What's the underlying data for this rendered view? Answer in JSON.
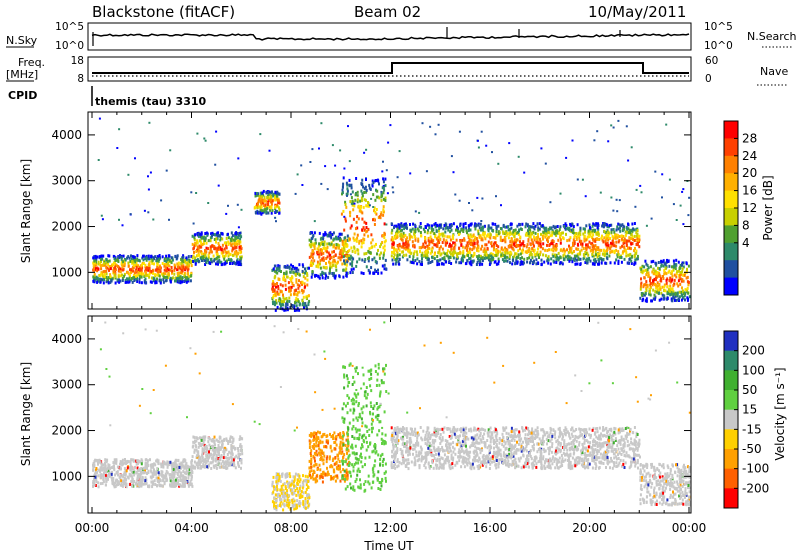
{
  "header": {
    "station": "Blackstone (fitACF)",
    "beam": "Beam 02",
    "date": "10/May/2011"
  },
  "panels": {
    "noise": {
      "left_label": "N.Sky",
      "right_label": "N.Search",
      "left_ticks": [
        "10^5",
        "10^0"
      ],
      "right_ticks": [
        "10^5",
        "10^0"
      ]
    },
    "freq": {
      "left_label_1": "Freq.",
      "left_label_2": "[MHz]",
      "right_label": "Nave",
      "left_ticks": [
        "18",
        "8"
      ],
      "right_ticks": [
        "60",
        "0"
      ]
    },
    "cpid": {
      "label": "CPID",
      "value": "themis (tau) 3310"
    }
  },
  "power_colorbar": {
    "title": "Power [dB]",
    "ticks": [
      "28",
      "24",
      "20",
      "16",
      "12",
      "8",
      "4"
    ],
    "colors": [
      "#ff0000",
      "#ff4000",
      "#ff8000",
      "#ffb000",
      "#ffe000",
      "#c8d000",
      "#50a030",
      "#2e8a6a",
      "#2050a0",
      "#0000ff"
    ]
  },
  "velocity_colorbar": {
    "title": "Velocity [m s⁻¹]",
    "ticks": [
      "200",
      "100",
      "50",
      "15",
      "-15",
      "-50",
      "-100",
      "-200"
    ],
    "colors": [
      "#2030c0",
      "#2e8a6a",
      "#40b030",
      "#60d040",
      "#c8c8c8",
      "#ffd000",
      "#ffa000",
      "#ff6000",
      "#ff0000"
    ]
  },
  "chart_data": [
    {
      "type": "heatmap",
      "title": "Power",
      "ylabel": "Slant Range [km]",
      "xlabel": "",
      "ylim": [
        200,
        4500
      ],
      "yticks": [
        "4000",
        "3000",
        "2000",
        "1000"
      ],
      "xticks": [],
      "bands": [
        {
          "start_h": 0.0,
          "end_h": 4.0,
          "range_lo": 800,
          "range_hi": 1400
        },
        {
          "start_h": 4.0,
          "end_h": 6.0,
          "range_lo": 1200,
          "range_hi": 1900
        },
        {
          "start_h": 6.5,
          "end_h": 7.5,
          "range_lo": 2300,
          "range_hi": 2800
        },
        {
          "start_h": 7.2,
          "end_h": 8.7,
          "range_lo": 200,
          "range_hi": 1200
        },
        {
          "start_h": 8.7,
          "end_h": 10.3,
          "range_lo": 900,
          "range_hi": 1900
        },
        {
          "start_h": 10.0,
          "end_h": 11.8,
          "range_lo": 1000,
          "range_hi": 3100
        },
        {
          "start_h": 12.0,
          "end_h": 22.0,
          "range_lo": 1200,
          "range_hi": 2100
        },
        {
          "start_h": 22.0,
          "end_h": 24.0,
          "range_lo": 400,
          "range_hi": 1300
        }
      ]
    },
    {
      "type": "heatmap",
      "title": "Velocity",
      "ylabel": "Slant Range [km]",
      "xlabel": "Time UT",
      "ylim": [
        200,
        4500
      ],
      "yticks": [
        "4000",
        "3000",
        "2000",
        "1000"
      ],
      "xticks": [
        "00:00",
        "04:00",
        "08:00",
        "12:00",
        "16:00",
        "20:00",
        "00:00"
      ],
      "bands": [
        {
          "start_h": 0.0,
          "end_h": 4.0,
          "range_lo": 800,
          "range_hi": 1400
        },
        {
          "start_h": 4.0,
          "end_h": 6.0,
          "range_lo": 1200,
          "range_hi": 1900
        },
        {
          "start_h": 7.2,
          "end_h": 8.7,
          "range_lo": 300,
          "range_hi": 1100
        },
        {
          "start_h": 8.7,
          "end_h": 10.3,
          "range_lo": 900,
          "range_hi": 2000
        },
        {
          "start_h": 10.0,
          "end_h": 11.8,
          "range_lo": 700,
          "range_hi": 3500
        },
        {
          "start_h": 12.0,
          "end_h": 22.0,
          "range_lo": 1200,
          "range_hi": 2100
        },
        {
          "start_h": 22.0,
          "end_h": 24.0,
          "range_lo": 400,
          "range_hi": 1300
        }
      ]
    }
  ]
}
